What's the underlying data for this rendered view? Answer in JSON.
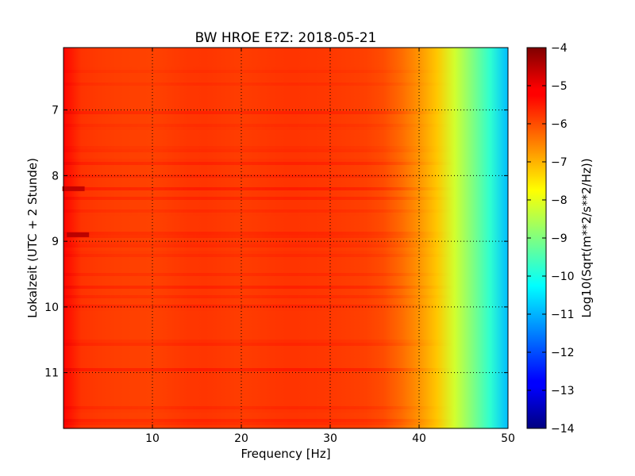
{
  "chart_data": {
    "type": "heatmap",
    "title": "BW HROE E?Z: 2018-05-21",
    "xlabel": "Frequency [Hz]",
    "ylabel": "Lokalzeit (UTC + 2 Stunde)",
    "xlim": [
      0,
      50
    ],
    "ylim": [
      11.85,
      6.05
    ],
    "y_inverted": true,
    "xticks": [
      10,
      20,
      30,
      40,
      50
    ],
    "yticks": [
      7,
      8,
      9,
      10,
      11
    ],
    "grid": true,
    "colormap": "jet",
    "colorbar": {
      "label": "Log10(Sqrt(m**2/s**2/Hz))",
      "range": [
        -14,
        -4
      ],
      "ticks": [
        -4,
        -5,
        -6,
        -7,
        -8,
        -9,
        -10,
        -11,
        -12,
        -13,
        -14
      ]
    },
    "frequency_profile": {
      "frequency_hz": [
        0,
        1,
        2,
        5,
        10,
        15,
        20,
        25,
        30,
        35,
        37,
        38,
        39,
        40,
        41,
        42,
        43,
        44,
        45,
        46,
        47,
        48,
        49,
        49.5,
        50
      ],
      "log10_amplitude": [
        -5.3,
        -5.6,
        -5.75,
        -5.85,
        -5.9,
        -5.75,
        -5.85,
        -5.75,
        -5.8,
        -5.9,
        -6.1,
        -6.3,
        -6.5,
        -6.7,
        -6.9,
        -7.2,
        -7.7,
        -8.2,
        -8.6,
        -9.0,
        -9.4,
        -9.8,
        -10.2,
        -10.6,
        -10.9
      ]
    },
    "time_bands": {
      "lokalzeit": [
        6.4,
        6.6,
        7.05,
        7.25,
        7.6,
        7.8,
        8.0,
        8.2,
        8.35,
        8.55,
        8.9,
        9.05,
        9.2,
        9.5,
        9.7,
        9.85,
        10.0,
        10.55,
        10.95,
        11.55,
        11.75
      ],
      "offset_log10": [
        0.1,
        0.1,
        0.25,
        0.15,
        0.2,
        0.3,
        0.2,
        0.25,
        0.2,
        0.15,
        0.35,
        0.25,
        0.2,
        0.15,
        0.2,
        0.15,
        0.25,
        0.3,
        0.3,
        0.2,
        0.35
      ]
    },
    "hotspots": [
      {
        "frequency_hz": 0.5,
        "lokalzeit": 8.2,
        "log10_amplitude": -4.6
      },
      {
        "frequency_hz": 1.0,
        "lokalzeit": 8.9,
        "log10_amplitude": -4.5
      }
    ]
  }
}
